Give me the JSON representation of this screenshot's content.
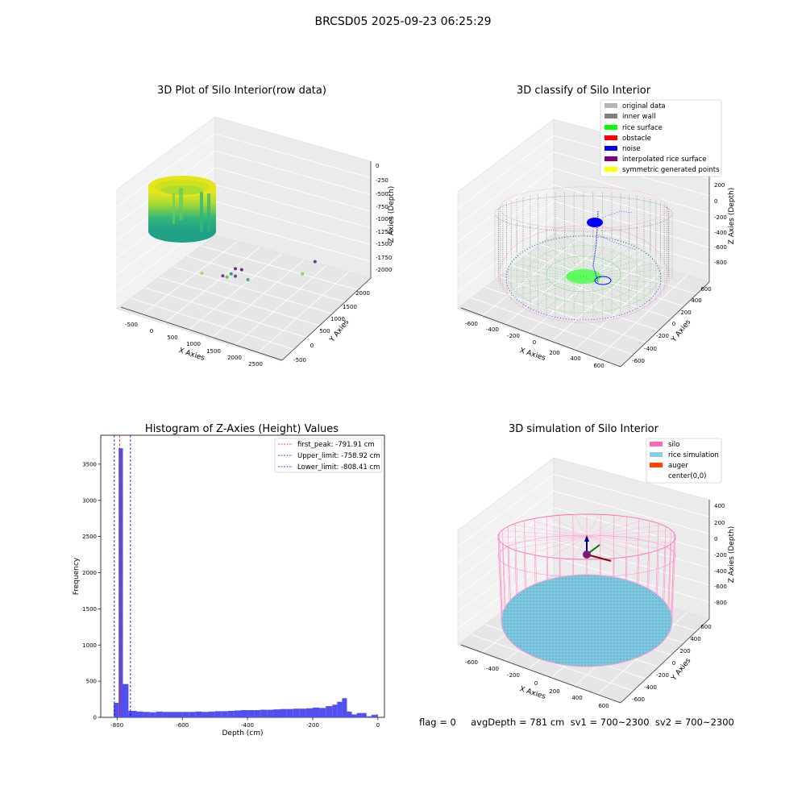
{
  "figure": {
    "suptitle": "BRCSD05 2025-09-23 06:25:29",
    "status_line": "flag = 0     avgDepth = 781 cm  sv1 = 700~2300  sv2 = 700~2300"
  },
  "chart_data": [
    {
      "type": "scatter",
      "title": "3D Plot of Silo Interior(row data)",
      "xlabel": "X Axies",
      "ylabel": "Y Axies",
      "zlabel": "Z Axies (Depth)",
      "x_ticks": [
        "-500",
        "0",
        "500",
        "1000",
        "1500",
        "2000",
        "2500"
      ],
      "y_ticks": [
        "-500",
        "0",
        "500",
        "1000",
        "1500",
        "2000"
      ],
      "z_ticks": [
        "0",
        "-250",
        "-500",
        "-750",
        "-1000",
        "-1250",
        "-1500",
        "-1750",
        "-2000"
      ],
      "colormap": "viridis",
      "main_cluster": {
        "x_range": [
          -600,
          600
        ],
        "y_range": [
          -600,
          600
        ],
        "z_range": [
          -800,
          0
        ]
      },
      "outliers": [
        {
          "x": 900,
          "y": 300,
          "z": -600,
          "color": "#a6db5a"
        },
        {
          "x": 1300,
          "y": 500,
          "z": -800,
          "color": "#5ec962"
        },
        {
          "x": 1600,
          "y": 700,
          "z": -1000,
          "color": "#35b779"
        },
        {
          "x": 2400,
          "y": 1200,
          "z": -1100,
          "color": "#8fd744"
        },
        {
          "x": 1000,
          "y": 900,
          "z": -1300,
          "color": "#2a9d8f"
        },
        {
          "x": 700,
          "y": 1000,
          "z": -1600,
          "color": "#7a3f8f"
        },
        {
          "x": 900,
          "y": 1100,
          "z": -1650,
          "color": "#7a3f8f"
        },
        {
          "x": 600,
          "y": 1400,
          "z": -1900,
          "color": "#6a2f80"
        },
        {
          "x": 700,
          "y": 1450,
          "z": -1950,
          "color": "#6a2f80"
        },
        {
          "x": 2200,
          "y": 1700,
          "z": -1400,
          "color": "#3b528b"
        }
      ]
    },
    {
      "type": "scatter",
      "title": "3D classify of Silo Interior",
      "xlabel": "X Axies",
      "ylabel": "Y Axies",
      "zlabel": "Z Axies (Depth)",
      "x_ticks": [
        "-600",
        "-400",
        "-200",
        "0",
        "200",
        "400",
        "600"
      ],
      "y_ticks": [
        "-600",
        "-400",
        "-200",
        "0",
        "200",
        "400",
        "600"
      ],
      "z_ticks": [
        "200",
        "0",
        "-200",
        "-400",
        "-600",
        "-800"
      ],
      "legend": [
        {
          "label": "original data",
          "color": "#b4b4b4"
        },
        {
          "label": "inner wall",
          "color": "#808080"
        },
        {
          "label": "rice surface",
          "color": "#00ff00"
        },
        {
          "label": "obstacle",
          "color": "#ff0000"
        },
        {
          "label": "noise",
          "color": "#0000ff"
        },
        {
          "label": "interpolated rice surface",
          "color": "#800080"
        },
        {
          "label": "symmetric generated points",
          "color": "#ffff00"
        }
      ],
      "legend_loc": "upper right"
    },
    {
      "type": "bar",
      "title": "Histogram of Z-Axies (Height) Values",
      "xlabel": "Depth (cm)",
      "ylabel": "Frequency",
      "xlim": [
        -850,
        20
      ],
      "ylim": [
        0,
        3900
      ],
      "x_ticks": [
        -800,
        -600,
        -400,
        -200,
        0
      ],
      "y_ticks": [
        0,
        500,
        1000,
        1500,
        2000,
        2500,
        3000,
        3500
      ],
      "bar_color": "#5050f0",
      "bins": [
        {
          "x0": -810,
          "x1": -795,
          "value": 200
        },
        {
          "x0": -795,
          "x1": -782,
          "value": 3720
        },
        {
          "x0": -782,
          "x1": -765,
          "value": 460
        },
        {
          "x0": -765,
          "x1": -740,
          "value": 90
        },
        {
          "x0": -740,
          "x1": -720,
          "value": 80
        },
        {
          "x0": -720,
          "x1": -700,
          "value": 75
        },
        {
          "x0": -700,
          "x1": -680,
          "value": 70
        },
        {
          "x0": -680,
          "x1": -660,
          "value": 80
        },
        {
          "x0": -660,
          "x1": -640,
          "value": 75
        },
        {
          "x0": -640,
          "x1": -620,
          "value": 75
        },
        {
          "x0": -620,
          "x1": -600,
          "value": 75
        },
        {
          "x0": -600,
          "x1": -580,
          "value": 75
        },
        {
          "x0": -580,
          "x1": -560,
          "value": 75
        },
        {
          "x0": -560,
          "x1": -540,
          "value": 80
        },
        {
          "x0": -540,
          "x1": -520,
          "value": 75
        },
        {
          "x0": -520,
          "x1": -500,
          "value": 80
        },
        {
          "x0": -500,
          "x1": -480,
          "value": 85
        },
        {
          "x0": -480,
          "x1": -460,
          "value": 85
        },
        {
          "x0": -460,
          "x1": -440,
          "value": 90
        },
        {
          "x0": -440,
          "x1": -420,
          "value": 95
        },
        {
          "x0": -420,
          "x1": -400,
          "value": 100
        },
        {
          "x0": -400,
          "x1": -380,
          "value": 100
        },
        {
          "x0": -380,
          "x1": -360,
          "value": 100
        },
        {
          "x0": -360,
          "x1": -340,
          "value": 105
        },
        {
          "x0": -340,
          "x1": -320,
          "value": 105
        },
        {
          "x0": -320,
          "x1": -300,
          "value": 110
        },
        {
          "x0": -300,
          "x1": -280,
          "value": 115
        },
        {
          "x0": -280,
          "x1": -260,
          "value": 115
        },
        {
          "x0": -260,
          "x1": -240,
          "value": 120
        },
        {
          "x0": -240,
          "x1": -220,
          "value": 120
        },
        {
          "x0": -220,
          "x1": -200,
          "value": 125
        },
        {
          "x0": -200,
          "x1": -180,
          "value": 135
        },
        {
          "x0": -180,
          "x1": -160,
          "value": 130
        },
        {
          "x0": -160,
          "x1": -140,
          "value": 155
        },
        {
          "x0": -140,
          "x1": -125,
          "value": 175
        },
        {
          "x0": -125,
          "x1": -110,
          "value": 215
        },
        {
          "x0": -110,
          "x1": -95,
          "value": 265
        },
        {
          "x0": -95,
          "x1": -80,
          "value": 80
        },
        {
          "x0": -80,
          "x1": -65,
          "value": 40
        },
        {
          "x0": -65,
          "x1": -50,
          "value": 60
        },
        {
          "x0": -50,
          "x1": -35,
          "value": 60
        },
        {
          "x0": -35,
          "x1": -20,
          "value": 15
        },
        {
          "x0": -20,
          "x1": -5,
          "value": 35
        },
        {
          "x0": -5,
          "x1": 0,
          "value": 40
        }
      ],
      "vlines": [
        {
          "label": "first_peak: -791.91 cm",
          "x": -791.91,
          "color": "#ff0000"
        },
        {
          "label": "Upper_limit: -758.92 cm",
          "x": -758.92,
          "color": "#0000cc"
        },
        {
          "label": "Lower_limit: -808.41 cm",
          "x": -808.41,
          "color": "#0000cc"
        }
      ],
      "legend_loc": "upper right"
    },
    {
      "type": "scatter",
      "title": "3D simulation of Silo Interior",
      "xlabel": "X Axies",
      "ylabel": "Y Axies",
      "zlabel": "Z Axies (Depth)",
      "x_ticks": [
        "-600",
        "-400",
        "-200",
        "0",
        "200",
        "400",
        "600"
      ],
      "y_ticks": [
        "-600",
        "-400",
        "-200",
        "0",
        "200",
        "400",
        "600"
      ],
      "z_ticks": [
        "400",
        "200",
        "0",
        "-200",
        "-400",
        "-600",
        "-800"
      ],
      "legend": [
        {
          "label": "silo",
          "color": "#ff69b4"
        },
        {
          "label": "rice simulation",
          "color": "#87ceeb"
        },
        {
          "label": "auger",
          "color": "#ff4500"
        },
        {
          "label": "center(0,0)",
          "color": "#ffffff"
        }
      ],
      "legend_loc": "upper right"
    }
  ]
}
